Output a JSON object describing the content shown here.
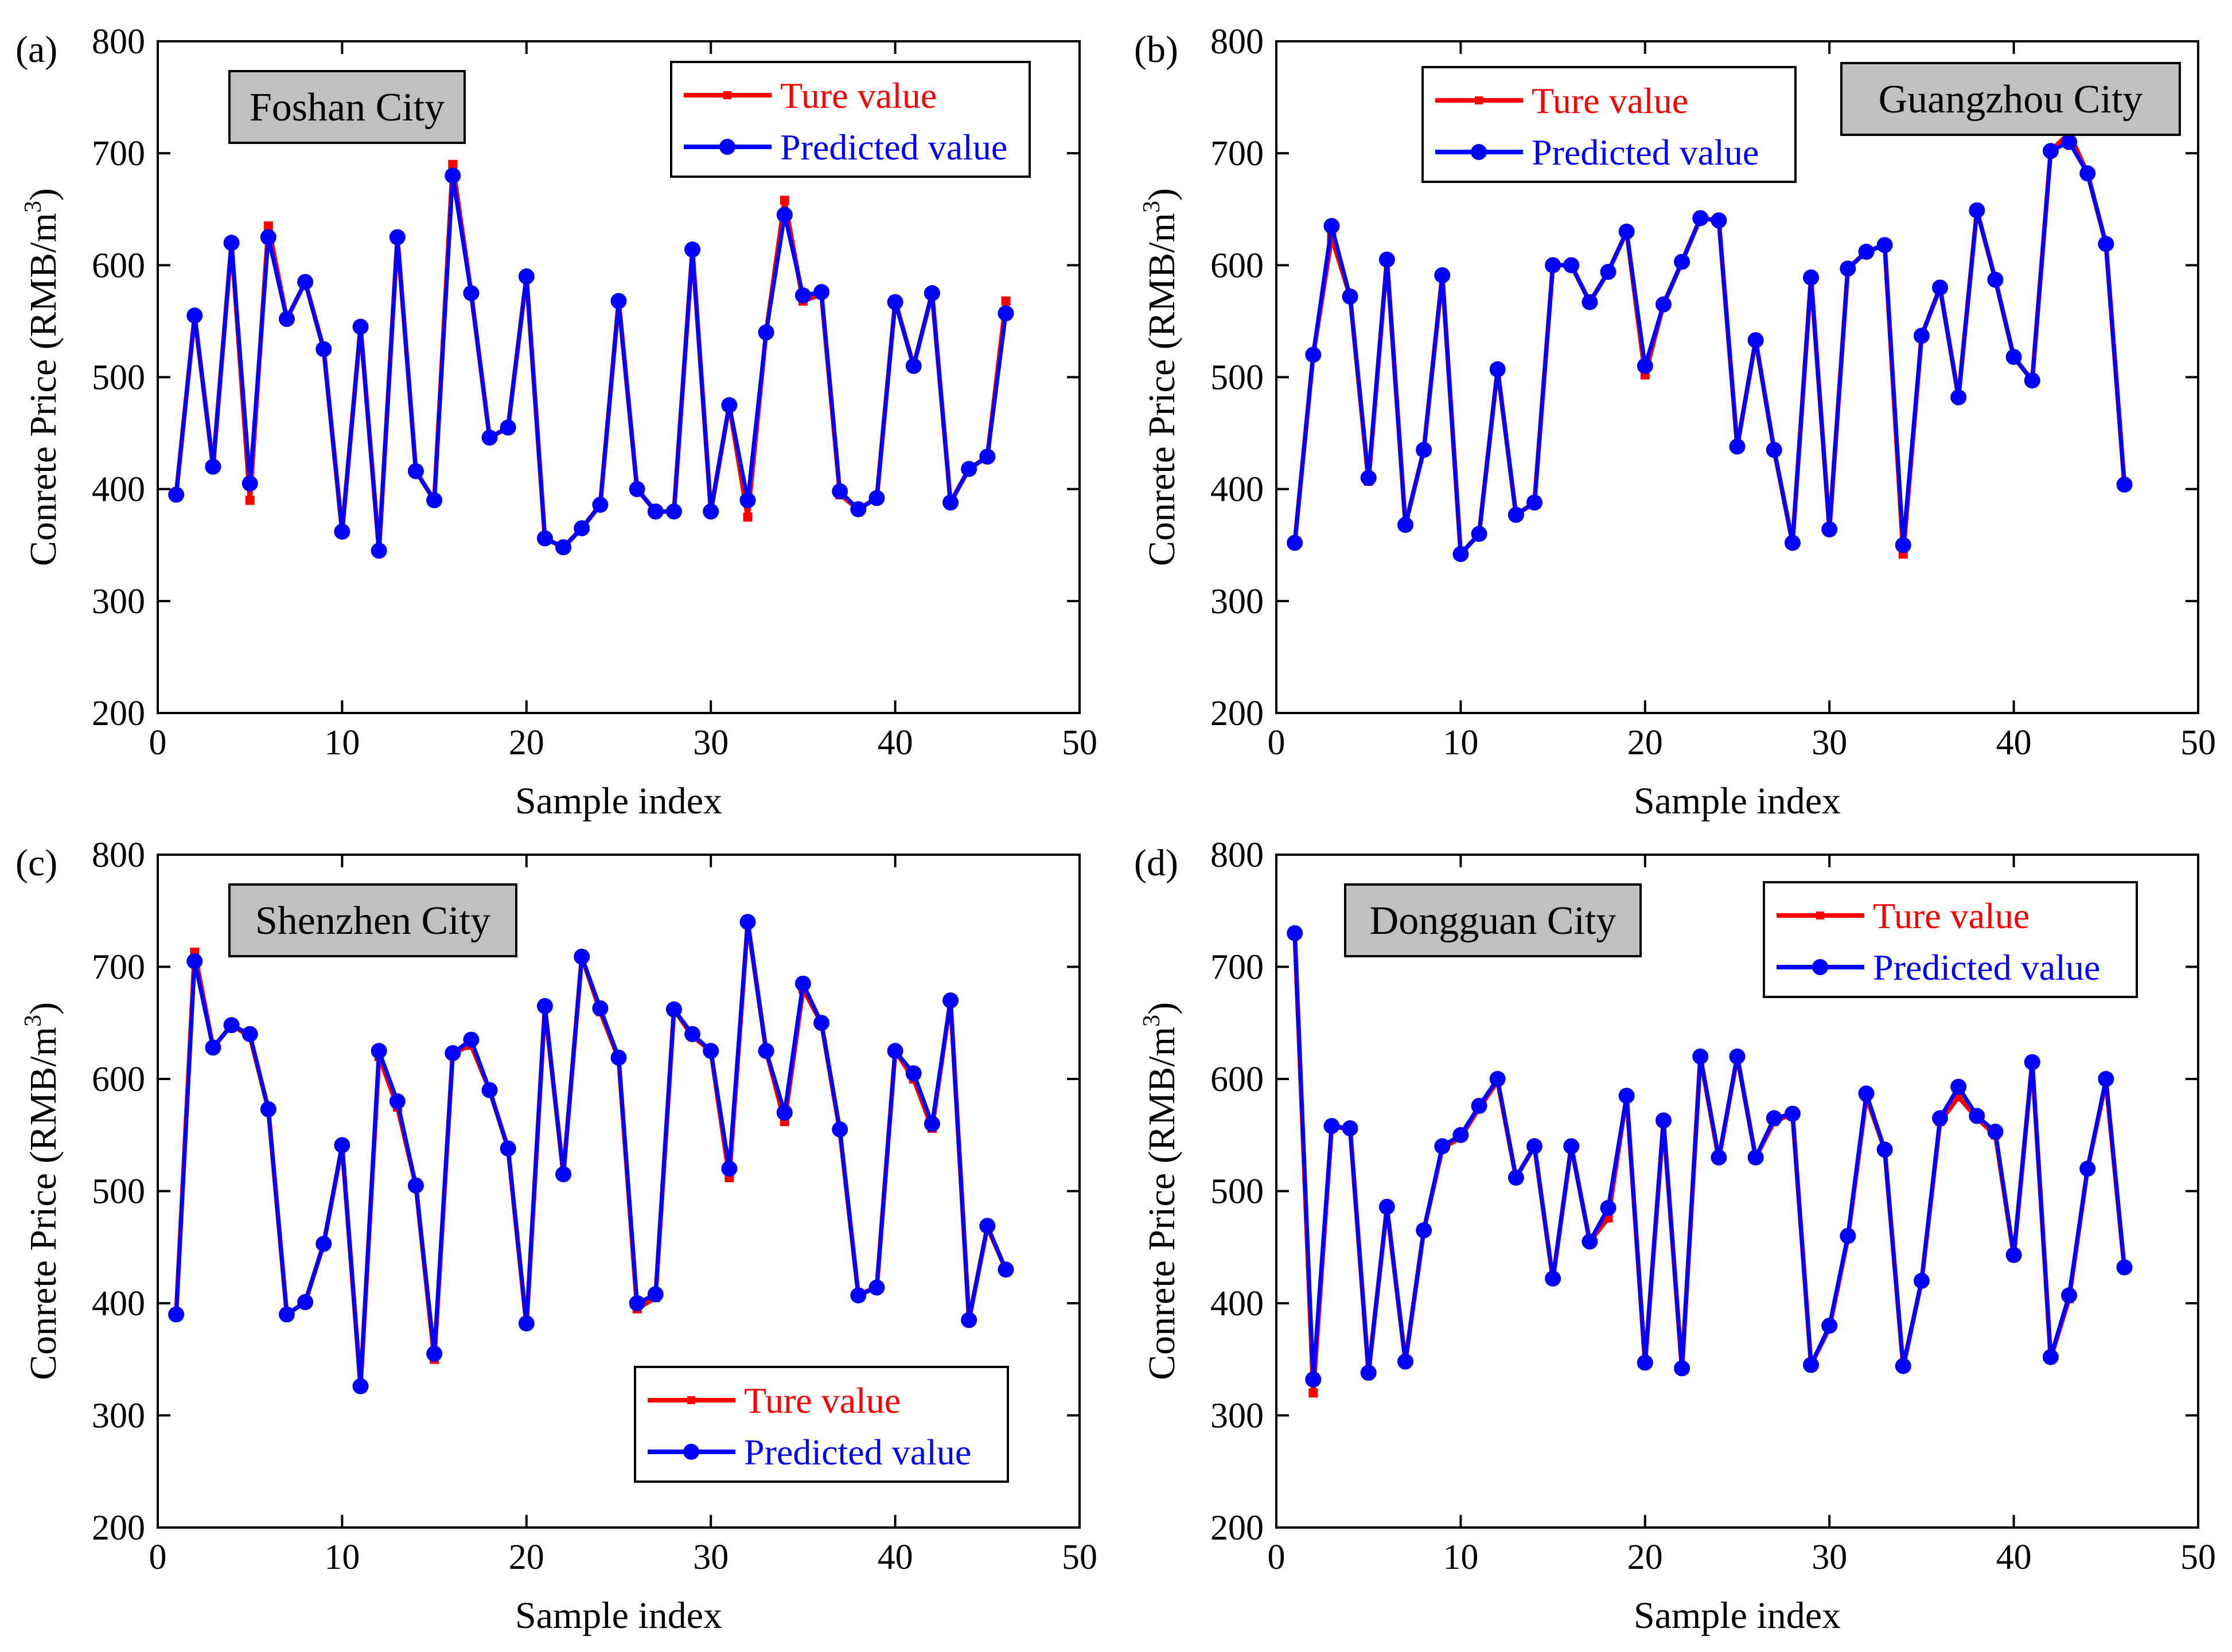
{
  "figure": {
    "true_color": "#ff0000",
    "pred_color": "#0000ff",
    "city_box_color": "#c0c0c0"
  },
  "chart_data": [
    {
      "type": "line",
      "panel_label": "(a)",
      "city": "Foshan City",
      "xlabel": "Sample index",
      "ylabel": "Conrete Price (RMB/m",
      "ylabel_sup": "3",
      "ylabel_close": ")",
      "xlim": [
        0,
        50
      ],
      "ylim": [
        200,
        800
      ],
      "xticks": [
        0,
        10,
        20,
        30,
        40,
        50
      ],
      "yticks": [
        200,
        300,
        400,
        500,
        600,
        700,
        800
      ],
      "legend_position": "top-right",
      "series": [
        {
          "name": "Ture value",
          "values": [
            395,
            555,
            420,
            620,
            390,
            635,
            552,
            585,
            525,
            362,
            545,
            345,
            625,
            416,
            390,
            690,
            575,
            446,
            455,
            590,
            356,
            348,
            365,
            386,
            568,
            400,
            380,
            380,
            614,
            380,
            475,
            375,
            540,
            658,
            568,
            574,
            395,
            382,
            392,
            568,
            510,
            575,
            388,
            418,
            429,
            568
          ]
        },
        {
          "name": "Predicted value",
          "values": [
            395,
            555,
            420,
            620,
            405,
            625,
            552,
            585,
            525,
            362,
            545,
            345,
            625,
            416,
            390,
            680,
            575,
            446,
            455,
            590,
            356,
            348,
            365,
            386,
            568,
            400,
            380,
            380,
            614,
            380,
            475,
            390,
            540,
            645,
            573,
            576,
            398,
            382,
            392,
            567,
            510,
            575,
            388,
            418,
            429,
            557
          ]
        }
      ]
    },
    {
      "type": "line",
      "panel_label": "(b)",
      "city": "Guangzhou City",
      "xlabel": "Sample index",
      "ylabel": "Conrete Price (RMB/m",
      "ylabel_sup": "3",
      "ylabel_close": ")",
      "xlim": [
        0,
        50
      ],
      "ylim": [
        200,
        800
      ],
      "xticks": [
        0,
        10,
        20,
        30,
        40,
        50
      ],
      "yticks": [
        200,
        300,
        400,
        500,
        600,
        700,
        800
      ],
      "legend_position": "top-left",
      "series": [
        {
          "name": "Ture value",
          "values": [
            352,
            520,
            625,
            572,
            407,
            605,
            368,
            435,
            591,
            342,
            360,
            507,
            377,
            388,
            600,
            600,
            567,
            594,
            630,
            502,
            565,
            603,
            642,
            640,
            438,
            533,
            435,
            352,
            589,
            364,
            597,
            612,
            618,
            342,
            537,
            580,
            482,
            649,
            587,
            518,
            497,
            702,
            718,
            682,
            619,
            404
          ]
        },
        {
          "name": "Predicted value",
          "values": [
            352,
            520,
            635,
            572,
            410,
            605,
            368,
            435,
            591,
            342,
            360,
            507,
            377,
            388,
            600,
            600,
            567,
            594,
            630,
            510,
            565,
            603,
            642,
            640,
            438,
            533,
            435,
            352,
            589,
            364,
            597,
            612,
            618,
            350,
            537,
            580,
            482,
            649,
            587,
            518,
            497,
            702,
            710,
            682,
            619,
            404
          ]
        }
      ]
    },
    {
      "type": "line",
      "panel_label": "(c)",
      "city": "Shenzhen City",
      "xlabel": "Sample index",
      "ylabel": "Conrete Price (RMB/m",
      "ylabel_sup": "3",
      "ylabel_close": ")",
      "xlim": [
        0,
        50
      ],
      "ylim": [
        200,
        800
      ],
      "xticks": [
        0,
        10,
        20,
        30,
        40,
        50
      ],
      "yticks": [
        200,
        300,
        400,
        500,
        600,
        700,
        800
      ],
      "legend_position": "bottom-right",
      "series": [
        {
          "name": "Ture value",
          "values": [
            390,
            713,
            628,
            648,
            638,
            573,
            390,
            401,
            453,
            540,
            326,
            620,
            575,
            505,
            350,
            623,
            630,
            590,
            538,
            380,
            664,
            515,
            709,
            660,
            618,
            395,
            405,
            662,
            638,
            625,
            512,
            740,
            625,
            562,
            680,
            650,
            553,
            408,
            414,
            625,
            600,
            556,
            670,
            385,
            468,
            430
          ]
        },
        {
          "name": "Predicted value",
          "values": [
            390,
            705,
            628,
            648,
            640,
            573,
            390,
            401,
            453,
            541,
            326,
            625,
            580,
            505,
            355,
            623,
            635,
            590,
            538,
            382,
            665,
            515,
            709,
            663,
            619,
            400,
            408,
            662,
            640,
            625,
            520,
            740,
            625,
            570,
            685,
            650,
            555,
            407,
            414,
            625,
            605,
            560,
            670,
            385,
            469,
            430
          ]
        }
      ]
    },
    {
      "type": "line",
      "panel_label": "(d)",
      "city": "Dongguan City",
      "xlabel": "Sample index",
      "ylabel": "Conrete Price (RMB/m",
      "ylabel_sup": "3",
      "ylabel_close": ")",
      "xlim": [
        0,
        50
      ],
      "ylim": [
        200,
        800
      ],
      "xticks": [
        0,
        10,
        20,
        30,
        40,
        50
      ],
      "yticks": [
        200,
        300,
        400,
        500,
        600,
        700,
        800
      ],
      "legend_position": "top-right",
      "series": [
        {
          "name": "Ture value",
          "values": [
            730,
            320,
            557,
            556,
            338,
            485,
            348,
            465,
            538,
            548,
            574,
            598,
            512,
            540,
            421,
            540,
            455,
            476,
            585,
            346,
            562,
            341,
            620,
            528,
            620,
            530,
            562,
            569,
            345,
            378,
            458,
            584,
            537,
            343,
            420,
            562,
            584,
            565,
            550,
            442,
            615,
            351,
            404,
            520,
            598,
            431
          ]
        },
        {
          "name": "Predicted value",
          "values": [
            730,
            332,
            558,
            556,
            338,
            486,
            348,
            465,
            540,
            550,
            576,
            600,
            512,
            540,
            422,
            540,
            455,
            485,
            585,
            347,
            563,
            342,
            620,
            530,
            620,
            530,
            565,
            569,
            345,
            380,
            460,
            587,
            537,
            344,
            420,
            565,
            593,
            567,
            553,
            443,
            615,
            352,
            407,
            520,
            600,
            432
          ]
        }
      ]
    }
  ]
}
